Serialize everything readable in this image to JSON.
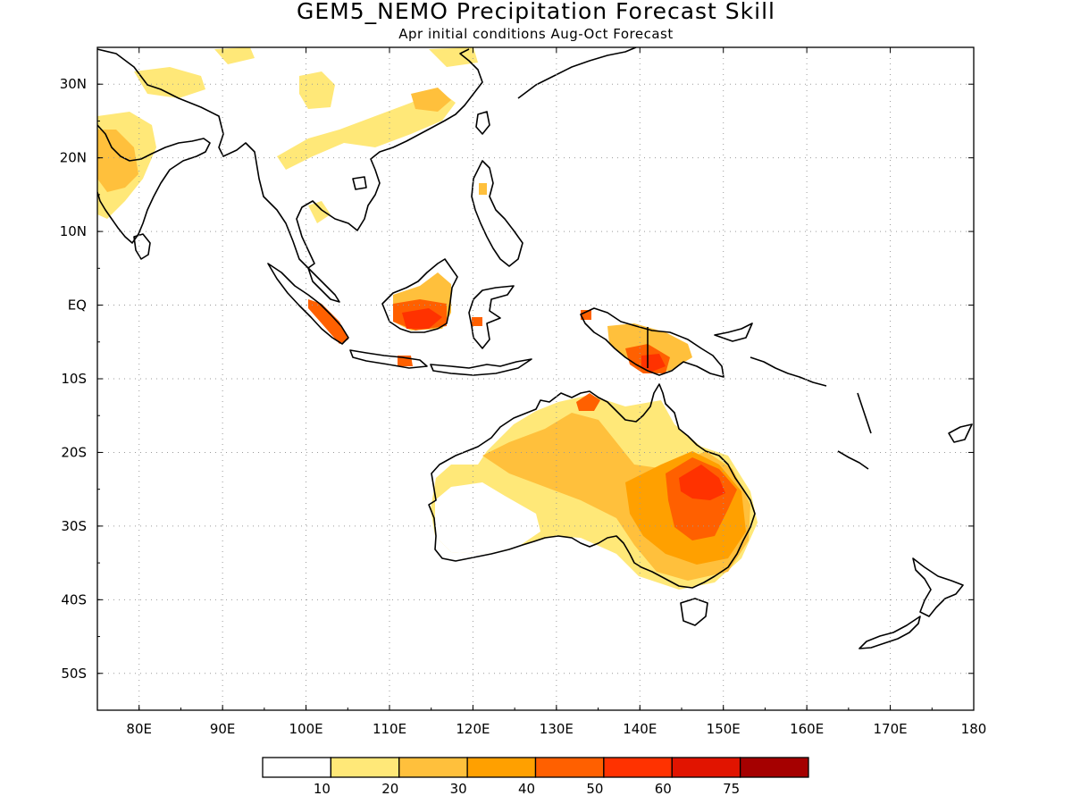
{
  "title": "GEM5_NEMO Precipitation Forecast Skill",
  "subtitle": "Apr initial conditions  Aug-Oct Forecast",
  "map": {
    "lon_range": [
      75,
      180
    ],
    "lat_range": [
      -55,
      35
    ],
    "grid": true,
    "lat_ticks": [
      {
        "value": 30,
        "label": "30N"
      },
      {
        "value": 20,
        "label": "20N"
      },
      {
        "value": 10,
        "label": "10N"
      },
      {
        "value": 0,
        "label": "EQ"
      },
      {
        "value": -10,
        "label": "10S"
      },
      {
        "value": -20,
        "label": "20S"
      },
      {
        "value": -30,
        "label": "30S"
      },
      {
        "value": -40,
        "label": "40S"
      },
      {
        "value": -50,
        "label": "50S"
      }
    ],
    "lon_ticks": [
      {
        "value": 80,
        "label": "80E"
      },
      {
        "value": 90,
        "label": "90E"
      },
      {
        "value": 100,
        "label": "100E"
      },
      {
        "value": 110,
        "label": "110E"
      },
      {
        "value": 120,
        "label": "120E"
      },
      {
        "value": 130,
        "label": "130E"
      },
      {
        "value": 140,
        "label": "140E"
      },
      {
        "value": 150,
        "label": "150E"
      },
      {
        "value": 160,
        "label": "160E"
      },
      {
        "value": 170,
        "label": "170E"
      },
      {
        "value": 180,
        "label": "180"
      }
    ]
  },
  "colorbar": {
    "colors": [
      "#ffffff",
      "#ffe878",
      "#ffc03c",
      "#ffa000",
      "#ff6000",
      "#ff3200",
      "#e11400",
      "#a50000"
    ],
    "labels": [
      "10",
      "20",
      "30",
      "40",
      "50",
      "60",
      "75"
    ]
  }
}
